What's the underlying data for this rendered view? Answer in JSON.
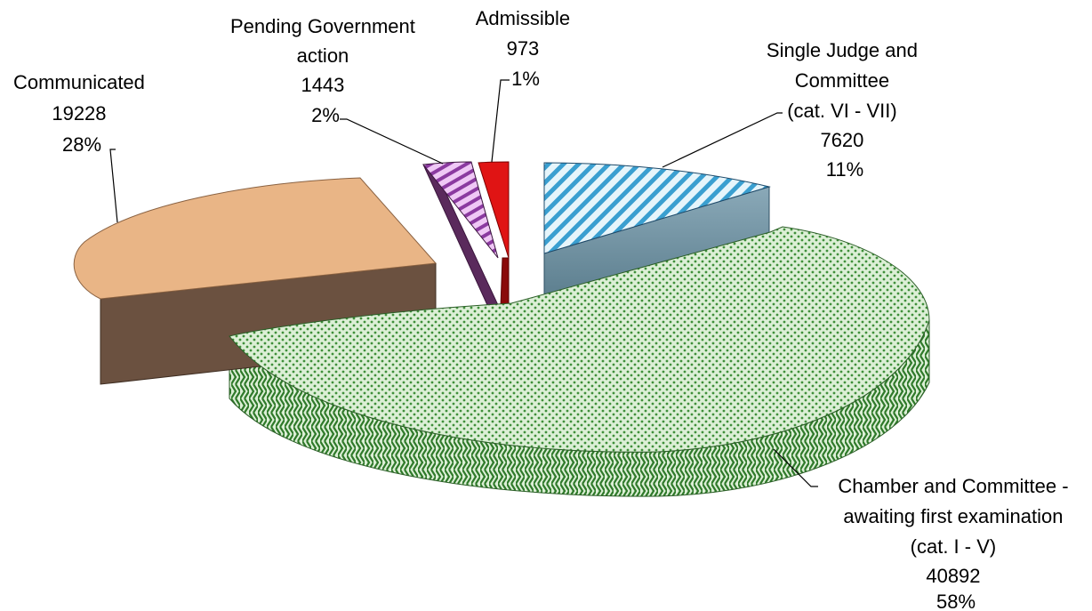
{
  "chart_data": {
    "type": "pie",
    "style": "3d-exploded",
    "title": "",
    "slices": [
      {
        "id": "chamber",
        "label_lines": [
          "Chamber and Committee -",
          "awaiting first examination",
          "(cat. I - V)"
        ],
        "value": 40892,
        "value_label": "40892",
        "percent_label": "58%",
        "color": "#3f8f3a",
        "pattern": "weave"
      },
      {
        "id": "communicated",
        "label_lines": [
          "Communicated"
        ],
        "value": 19228,
        "value_label": "19228",
        "percent_label": "28%",
        "color": "#e9b586",
        "pattern": "solid"
      },
      {
        "id": "pending",
        "label_lines": [
          "Pending Government",
          "action"
        ],
        "value": 1443,
        "value_label": "1443",
        "percent_label": "2%",
        "color": "#8b3aa0",
        "pattern": "diagonal-stripes"
      },
      {
        "id": "admissible",
        "label_lines": [
          "Admissible"
        ],
        "value": 973,
        "value_label": "973",
        "percent_label": "1%",
        "color": "#e01414",
        "pattern": "solid"
      },
      {
        "id": "single",
        "label_lines": [
          "Single Judge and",
          "Committee",
          "(cat. VI - VII)"
        ],
        "value": 7620,
        "value_label": "7620",
        "percent_label": "11%",
        "color": "#3a9fd0",
        "pattern": "diagonal-stripes"
      }
    ]
  }
}
